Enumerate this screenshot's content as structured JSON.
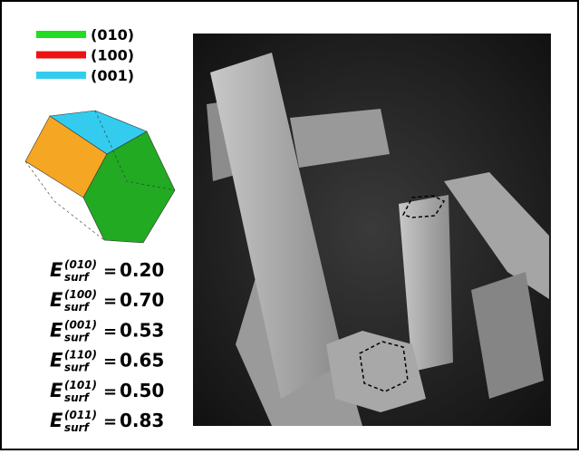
{
  "legend": [
    {
      "label": "(010)",
      "color": "#22dd22"
    },
    {
      "label": "(100)",
      "color": "#ee1111"
    },
    {
      "label": "(001)",
      "color": "#33ccee"
    }
  ],
  "energies": [
    {
      "symbol": "E",
      "superscript": "(010)",
      "subscript": "surf",
      "equals": "=",
      "value": "0.20"
    },
    {
      "symbol": "E",
      "superscript": "(100)",
      "subscript": "surf",
      "equals": "=",
      "value": "0.70"
    },
    {
      "symbol": "E",
      "superscript": "(001)",
      "subscript": "surf",
      "equals": "=",
      "value": "0.53"
    },
    {
      "symbol": "E",
      "superscript": "(110)",
      "subscript": "surf",
      "equals": "=",
      "value": "0.65"
    },
    {
      "symbol": "E",
      "superscript": "(101)",
      "subscript": "surf",
      "equals": "=",
      "value": "0.50"
    },
    {
      "symbol": "E",
      "superscript": "(011)",
      "subscript": "surf",
      "equals": "=",
      "value": "0.83"
    }
  ]
}
